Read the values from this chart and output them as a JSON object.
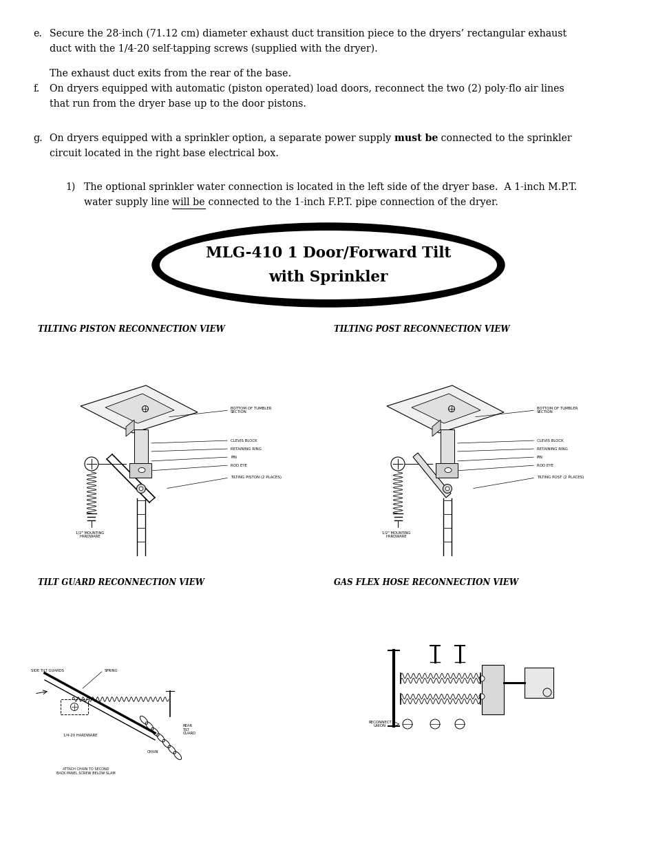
{
  "bg_color": "#ffffff",
  "page_width": 9.54,
  "page_height": 12.35,
  "text_color": "#000000",
  "banner_title_line1": "MLG-410 1 Door/Forward Tilt",
  "banner_title_line2": "with Sprinkler",
  "diagram_titles": [
    "TILTING PISTON RECONNECTION VIEW",
    "TILTING POST RECONNECTION VIEW",
    "TILT GUARD RECONNECTION VIEW",
    "GAS FLEX HOSE RECONNECTION VIEW"
  ],
  "para_e_line1": "Secure the 28-inch (71.12 cm) diameter exhaust duct transition piece to the dryers’ rectangular exhaust",
  "para_e_line2": "duct with the 1/4-20 self-tapping screws (supplied with the dryer).",
  "para_e_line3": "The exhaust duct exits from the rear of the base.",
  "para_f_line1": "On dryers equipped with automatic (piston operated) load doors, reconnect the two (2) poly-flo air lines",
  "para_f_line2": "that run from the dryer base up to the door pistons.",
  "para_g_pre": "On dryers equipped with a sprinkler option, a separate power supply ",
  "para_g_bold": "must be",
  "para_g_post": " connected to the sprinkler",
  "para_g_line2": "circuit located in the right base electrical box.",
  "para_g1_line1": "The optional sprinkler water connection is located in the left side of the dryer base.  A 1-inch M.P.T.",
  "para_g1_pre": "water supply line ",
  "para_g1_underline": "will be",
  "para_g1_post": " connected to the 1-inch F.P.T. pipe connection of the dryer."
}
